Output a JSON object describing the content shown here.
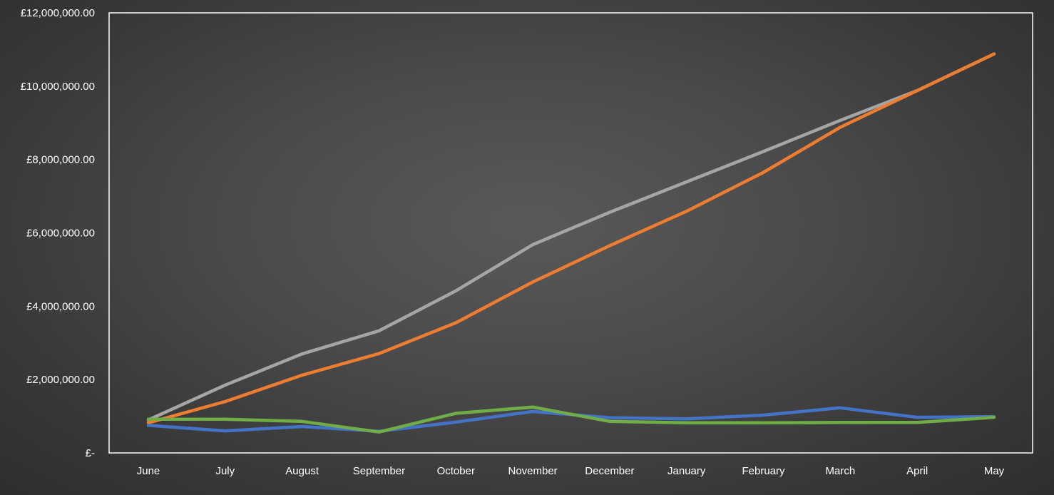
{
  "chart_data": {
    "type": "line",
    "title": "",
    "xlabel": "",
    "ylabel": "",
    "categories": [
      "June",
      "July",
      "August",
      "September",
      "October",
      "November",
      "December",
      "January",
      "February",
      "March",
      "April",
      "May"
    ],
    "y_tick_values": [
      0,
      2000000,
      4000000,
      6000000,
      8000000,
      10000000,
      12000000
    ],
    "y_tick_labels": [
      "£-",
      "£2,000,000.00",
      "£4,000,000.00",
      "£6,000,000.00",
      "£8,000,000.00",
      "£10,000,000.00",
      "£12,000,000.00"
    ],
    "ylim": [
      0,
      12000000
    ],
    "grid": false,
    "legend": "none",
    "series": [
      {
        "color": "#a5a5a5",
        "values": [
          900000,
          1850000,
          2700000,
          3330000,
          4420000,
          5680000,
          6560000,
          7390000,
          8220000,
          9070000,
          9880000,
          10880000
        ]
      },
      {
        "color": "#ed7d31",
        "values": [
          820000,
          1400000,
          2120000,
          2710000,
          3550000,
          4660000,
          5650000,
          6590000,
          7650000,
          8880000,
          9880000,
          10880000
        ]
      },
      {
        "color": "#4472c4",
        "values": [
          750000,
          600000,
          720000,
          590000,
          840000,
          1130000,
          960000,
          930000,
          1030000,
          1230000,
          970000,
          990000
        ]
      },
      {
        "color": "#70ad47",
        "values": [
          920000,
          920000,
          860000,
          570000,
          1080000,
          1250000,
          860000,
          820000,
          820000,
          830000,
          830000,
          970000
        ]
      }
    ]
  }
}
